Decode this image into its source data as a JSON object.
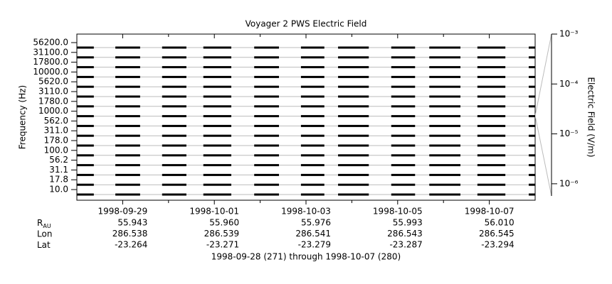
{
  "chart_data": {
    "type": "timeline",
    "title": "Voyager 2 PWS Electric Field",
    "ylabel": "Frequency (Hz)",
    "y2label": "Electric Field (V/m)",
    "categories": [
      "56200.0",
      "31100.0",
      "17800.0",
      "10000.0",
      "5620.0",
      "3110.0",
      "1780.0",
      "1000.0",
      "562.0",
      "311.0",
      "178.0",
      "100.0",
      "56.2",
      "31.1",
      "17.8",
      "10.0"
    ],
    "segments": [
      [
        271.0,
        271.37
      ],
      [
        271.84,
        272.38
      ],
      [
        272.86,
        273.39
      ],
      [
        273.76,
        274.37
      ],
      [
        274.87,
        275.41
      ],
      [
        275.89,
        276.4
      ],
      [
        276.7,
        277.37
      ],
      [
        277.86,
        278.38
      ],
      [
        278.69,
        279.37
      ],
      [
        279.74,
        280.35
      ],
      [
        280.86,
        281.0
      ]
    ],
    "color": "#000000",
    "xlim": [
      271,
      281
    ],
    "xticks": [
      {
        "value": 272,
        "label": "1998-09-29"
      },
      {
        "value": 274,
        "label": "1998-10-01"
      },
      {
        "value": 276,
        "label": "1998-10-03"
      },
      {
        "value": 278,
        "label": "1998-10-05"
      },
      {
        "value": 280,
        "label": "1998-10-07"
      }
    ],
    "xminorticks": [
      273,
      275,
      277,
      279
    ],
    "y2lim": [
      5.7e-07,
      0.001
    ],
    "y2log": true,
    "y2ticks": [
      {
        "value": 0.001,
        "label": "10⁻³"
      },
      {
        "value": 0.0001,
        "label": "10⁻⁴"
      },
      {
        "value": 1e-05,
        "label": "10⁻⁵"
      },
      {
        "value": 1e-06,
        "label": "10⁻⁶"
      }
    ],
    "ephemeris": [
      {
        "label": "R",
        "sub": "AU",
        "values": [
          "55.943",
          "55.960",
          "55.976",
          "55.993",
          "56.010"
        ]
      },
      {
        "label": "Lon",
        "values": [
          "286.538",
          "286.539",
          "286.541",
          "286.543",
          "286.545"
        ]
      },
      {
        "label": "Lat",
        "values": [
          "-23.264",
          "-23.271",
          "-23.279",
          "-23.287",
          "-23.294"
        ]
      }
    ],
    "footer": "1998-09-28 (271) through 1998-10-07 (280)"
  }
}
